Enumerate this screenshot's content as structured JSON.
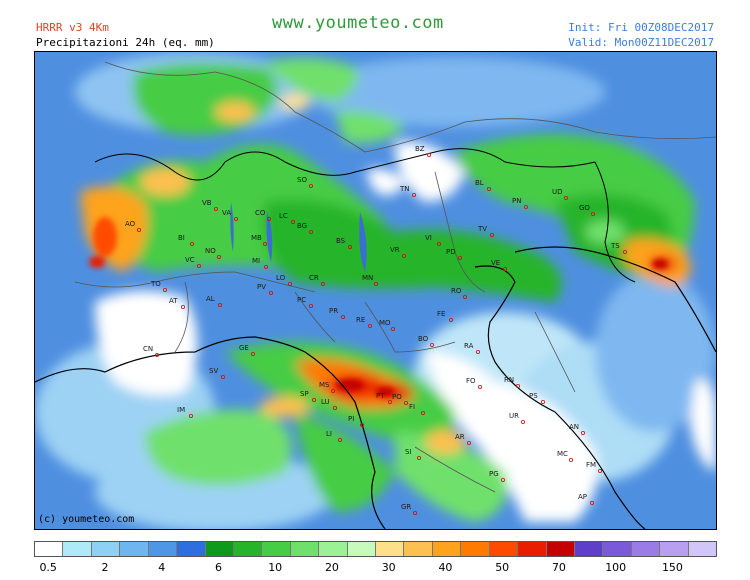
{
  "header": {
    "model": "HRRR v3 4Km",
    "product": "Precipitazioni 24h (eq. mm)",
    "site": "www.youmeteo.com",
    "init": "Init: Fri  00Z08DEC2017",
    "valid": "Valid: Mon00Z11DEC2017"
  },
  "map": {
    "copyright": "(c) youmeteo.com",
    "cities": [
      "BZ",
      "SO",
      "TN",
      "BL",
      "UD",
      "VB",
      "VA",
      "CO",
      "LC",
      "BG",
      "BS",
      "VR",
      "VI",
      "TV",
      "PN",
      "GO",
      "AO",
      "BI",
      "NO",
      "MB",
      "MI",
      "PD",
      "VE",
      "TS",
      "VC",
      "LO",
      "CR",
      "MN",
      "RO",
      "TO",
      "AT",
      "AL",
      "PV",
      "PC",
      "PR",
      "RE",
      "MO",
      "FE",
      "CN",
      "GE",
      "BO",
      "RA",
      "SV",
      "SP",
      "MS",
      "LU",
      "PT",
      "PO",
      "FI",
      "FO",
      "RN",
      "PS",
      "IM",
      "PI",
      "LI",
      "AR",
      "UR",
      "AN",
      "SI",
      "MC",
      "FM",
      "PG",
      "AP",
      "GR"
    ]
  },
  "legend": {
    "colors": [
      "#ffffff",
      "#aeeaf7",
      "#8fd0f5",
      "#6fb5ef",
      "#4f97e6",
      "#2f6ede",
      "#0e9a1c",
      "#27b42a",
      "#46cc45",
      "#6fe06c",
      "#9cf095",
      "#c6fbbc",
      "#fee08a",
      "#fec050",
      "#fea31e",
      "#fe7a00",
      "#fe4b00",
      "#e91e00",
      "#c50000",
      "#5e3fc9",
      "#7a5ad8",
      "#9b7ce6",
      "#b89ff0",
      "#d2c6f8"
    ],
    "ticks": [
      "0.5",
      "2",
      "4",
      "6",
      "10",
      "20",
      "30",
      "40",
      "50",
      "70",
      "100",
      "150"
    ]
  }
}
